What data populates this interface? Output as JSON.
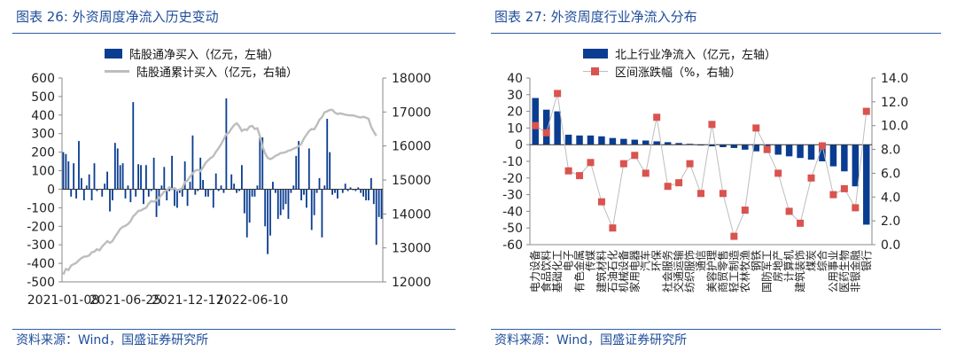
{
  "left": {
    "title": "图表 26:  外资周度净流入历史变动",
    "source": "资料来源：Wind，国盛证券研究所",
    "colors": {
      "bar": "#0a3d91",
      "line": "#bdbdbd"
    },
    "chart_data": {
      "type": "bar",
      "series": [
        {
          "name": "陆股通净买入（亿元，左轴）",
          "axis": "left",
          "type": "bar",
          "values": [
            200,
            190,
            150,
            -40,
            140,
            -50,
            260,
            60,
            -60,
            20,
            80,
            -60,
            140,
            -10,
            0,
            -40,
            30,
            95,
            -120,
            -60,
            250,
            220,
            130,
            140,
            -50,
            20,
            -70,
            470,
            -40,
            135,
            130,
            -80,
            130,
            -40,
            -10,
            170,
            -150,
            -90,
            20,
            120,
            -60,
            -10,
            180,
            -90,
            -100,
            -20,
            -40,
            150,
            -90,
            40,
            290,
            -30,
            -10,
            170,
            50,
            -40,
            -40,
            -5,
            -100,
            85,
            -10,
            20,
            -20,
            490,
            0,
            80,
            30,
            -20,
            -10,
            130,
            -130,
            -260,
            -180,
            -40,
            -40,
            20,
            280,
            280,
            -200,
            -350,
            -250,
            40,
            -20,
            -160,
            -140,
            -110,
            -80,
            -160,
            -20,
            20,
            180,
            260,
            -60,
            -30,
            -100,
            220,
            -220,
            -140,
            -20,
            60,
            -260,
            20,
            380,
            200,
            -30,
            -20,
            -50,
            0,
            -20,
            30,
            -10,
            10,
            -5,
            -10,
            10,
            -20,
            -40,
            -60,
            -60,
            60,
            -80,
            -300,
            -150,
            -160
          ]
        },
        {
          "name": "陆股通累计买入（亿元，右轴）",
          "axis": "right",
          "type": "line",
          "values": [
            12220,
            12380,
            12350,
            12480,
            12520,
            12560,
            12640,
            12700,
            12740,
            12750,
            12780,
            12870,
            12890,
            12960,
            12930,
            13040,
            13120,
            13200,
            13150,
            13200,
            13330,
            13440,
            13560,
            13620,
            13650,
            13700,
            13790,
            13930,
            14000,
            14090,
            14100,
            14150,
            14180,
            14300,
            14380,
            14360,
            14400,
            14470,
            14560,
            14660,
            14700,
            14780,
            14720,
            14760,
            14700,
            14720,
            14760,
            14940,
            14980,
            15100,
            15190,
            15270,
            15300,
            15260,
            15370,
            15500,
            15580,
            15650,
            15700,
            15830,
            15930,
            16050,
            16200,
            16350,
            16390,
            16510,
            16610,
            16670,
            16580,
            16440,
            16490,
            16470,
            16570,
            16590,
            16500,
            16520,
            16300,
            15980,
            15780,
            15650,
            15610,
            15650,
            15710,
            15740,
            15790,
            15800,
            15820,
            15860,
            15880,
            15920,
            15950,
            15990,
            16060,
            16220,
            16330,
            16440,
            16500,
            16490,
            16620,
            16770,
            16850,
            16990,
            17020,
            17060,
            17060,
            16980,
            16940,
            16960,
            16940,
            16920,
            16910,
            16900,
            16900,
            16880,
            16850,
            16840,
            16860,
            16830,
            16800,
            16560,
            16420,
            16300
          ]
        }
      ],
      "x_tick_labels": [
        "2021-01-08",
        "2021-06-25",
        "2021-12-17",
        "2022-06-10"
      ],
      "x_tick_index": [
        0,
        24,
        48,
        73
      ],
      "ylim_left": [
        -500,
        600
      ],
      "yticks_left": [
        -500,
        -400,
        -300,
        -200,
        -100,
        0,
        100,
        200,
        300,
        400,
        500,
        600
      ],
      "ylim_right": [
        12000,
        18000
      ],
      "yticks_right": [
        12000,
        13000,
        14000,
        15000,
        16000,
        17000,
        18000
      ],
      "legend_position": "top-center",
      "grid": false
    }
  },
  "right": {
    "title": "图表 27:  外资周度行业净流入分布",
    "source": "资料来源：Wind，国盛证券研究所",
    "colors": {
      "bar": "#0a3d91",
      "marker": "#d9534f",
      "marker_line": "#bdbdbd"
    },
    "chart_data": {
      "type": "bar",
      "categories": [
        "电力设备",
        "食品饮料",
        "基础化工",
        "电子",
        "有色金属",
        "传媒",
        "建筑材料",
        "石油石化",
        "机械设备",
        "家用电器",
        "汽车",
        "环保",
        "社会服务",
        "交通运输",
        "纺织服饰",
        "通信",
        "美容护理",
        "商贸零售",
        "轻工制造",
        "农林牧渔",
        "钢铁",
        "国防军工",
        "房地产",
        "计算机",
        "建筑装饰",
        "煤炭",
        "综合",
        "公用事业",
        "医药生物",
        "非银金融",
        "银行"
      ],
      "series": [
        {
          "name": "北上行业净流入（亿元，左轴）",
          "axis": "left",
          "type": "bar",
          "values": [
            28,
            21,
            20,
            6,
            5.5,
            5.5,
            5,
            4,
            3.5,
            3,
            2.5,
            2,
            1.5,
            1,
            0.5,
            -0.5,
            -1,
            -1.5,
            -2,
            -3,
            -4,
            -5,
            -6,
            -7,
            -8,
            -9,
            -10,
            -13,
            -16,
            -25,
            -48
          ]
        },
        {
          "name": "区间涨跌幅（%，右轴）",
          "axis": "right",
          "type": "scatter",
          "values": [
            10.0,
            9.4,
            12.7,
            6.2,
            5.8,
            6.9,
            3.6,
            1.4,
            6.8,
            7.5,
            6.0,
            10.7,
            4.9,
            5.2,
            6.8,
            4.3,
            10.1,
            4.3,
            0.7,
            2.9,
            9.8,
            8.0,
            6.0,
            2.8,
            1.8,
            5.6,
            8.3,
            4.2,
            4.7,
            3.1,
            11.2
          ]
        }
      ],
      "ylim_left": [
        -60,
        40
      ],
      "yticks_left": [
        -60,
        -50,
        -40,
        -30,
        -20,
        -10,
        0,
        10,
        20,
        30,
        40
      ],
      "ylim_right": [
        0,
        14
      ],
      "yticks_right": [
        "0.0",
        "2.0",
        "4.0",
        "6.0",
        "8.0",
        "10.0",
        "12.0",
        "14.0"
      ],
      "legend_position": "top-center",
      "grid": false
    }
  }
}
